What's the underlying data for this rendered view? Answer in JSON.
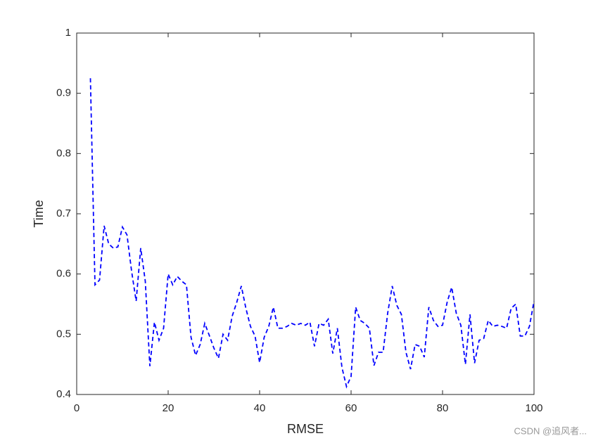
{
  "chart_data": {
    "type": "line",
    "xlabel": "RMSE",
    "ylabel": "Time",
    "watermark": "CSDN @追风者...",
    "x": [
      3,
      4,
      5,
      6,
      7,
      8,
      9,
      10,
      11,
      12,
      13,
      14,
      15,
      16,
      17,
      18,
      19,
      20,
      21,
      22,
      23,
      24,
      25,
      26,
      27,
      28,
      29,
      30,
      31,
      32,
      33,
      34,
      35,
      36,
      37,
      38,
      39,
      40,
      41,
      42,
      43,
      44,
      45,
      46,
      47,
      48,
      49,
      50,
      51,
      52,
      53,
      54,
      55,
      56,
      57,
      58,
      59,
      60,
      61,
      62,
      63,
      64,
      65,
      66,
      67,
      68,
      69,
      70,
      71,
      72,
      73,
      74,
      75,
      76,
      77,
      78,
      79,
      80,
      81,
      82,
      83,
      84,
      85,
      86,
      87,
      88,
      89,
      90,
      91,
      92,
      93,
      94,
      95,
      96,
      97,
      98,
      99,
      100
    ],
    "series": [
      {
        "name": "Time",
        "color": "#0000ff",
        "values": [
          0.925,
          0.582,
          0.59,
          0.68,
          0.65,
          0.643,
          0.645,
          0.678,
          0.665,
          0.605,
          0.555,
          0.643,
          0.588,
          0.447,
          0.52,
          0.49,
          0.51,
          0.6,
          0.582,
          0.596,
          0.588,
          0.582,
          0.495,
          0.465,
          0.483,
          0.518,
          0.498,
          0.477,
          0.46,
          0.5,
          0.49,
          0.53,
          0.553,
          0.58,
          0.543,
          0.513,
          0.497,
          0.453,
          0.495,
          0.513,
          0.545,
          0.51,
          0.51,
          0.513,
          0.518,
          0.515,
          0.518,
          0.515,
          0.52,
          0.48,
          0.518,
          0.515,
          0.525,
          0.468,
          0.51,
          0.445,
          0.413,
          0.43,
          0.545,
          0.523,
          0.518,
          0.51,
          0.448,
          0.47,
          0.47,
          0.535,
          0.58,
          0.548,
          0.533,
          0.47,
          0.442,
          0.483,
          0.48,
          0.462,
          0.545,
          0.523,
          0.513,
          0.515,
          0.553,
          0.578,
          0.535,
          0.515,
          0.45,
          0.533,
          0.452,
          0.49,
          0.493,
          0.523,
          0.513,
          0.515,
          0.513,
          0.51,
          0.543,
          0.55,
          0.497,
          0.497,
          0.513,
          0.555
        ]
      }
    ],
    "xlim": [
      0,
      100
    ],
    "xticks": [
      0,
      20,
      40,
      60,
      80,
      100
    ],
    "ylim": [
      0.4,
      1
    ],
    "yticks": [
      0.4,
      0.5,
      0.6,
      0.7,
      0.8,
      0.9,
      1
    ]
  }
}
